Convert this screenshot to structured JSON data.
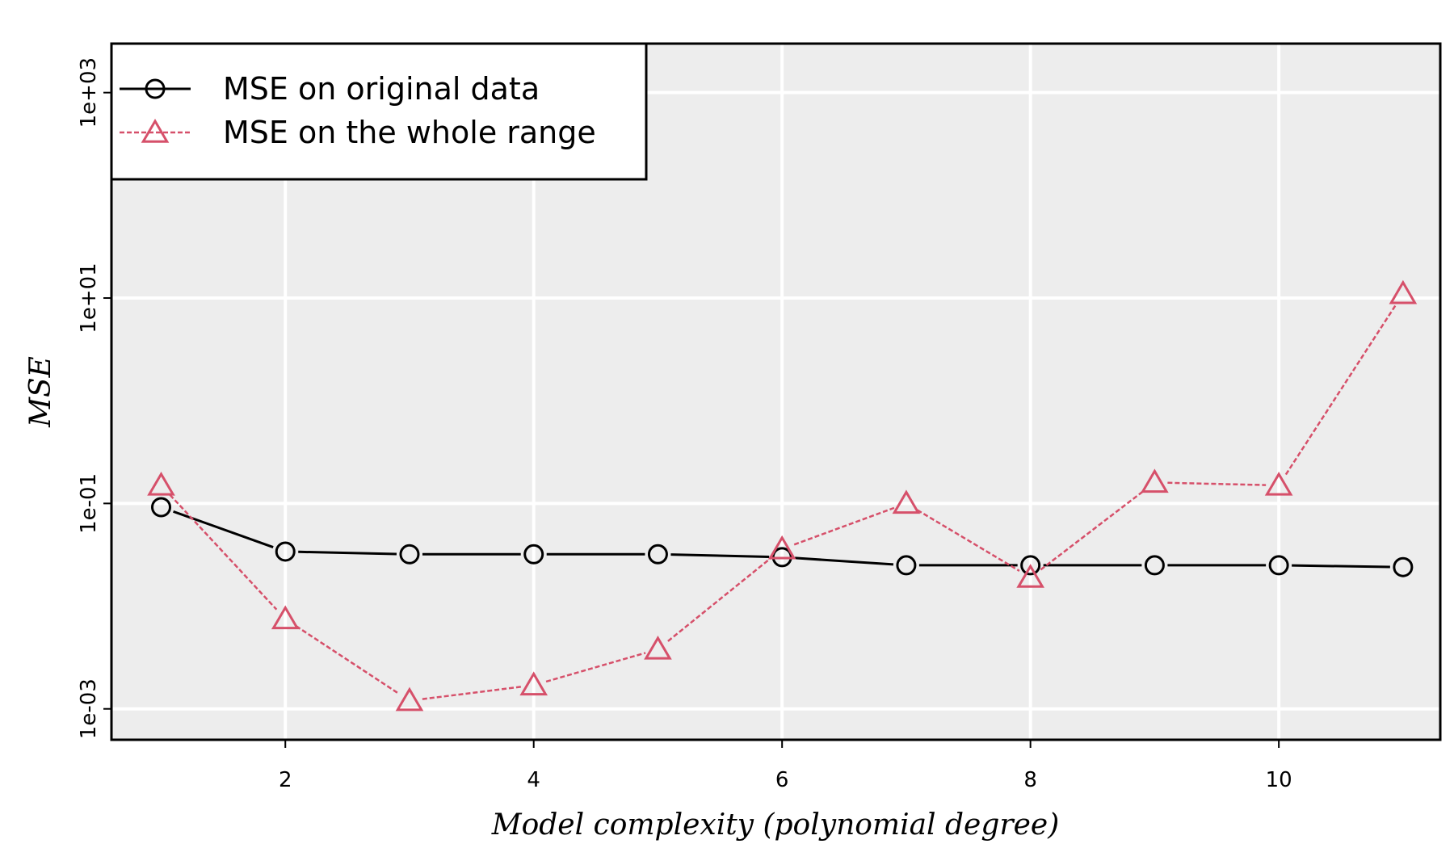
{
  "chart_data": {
    "type": "line",
    "xlabel": "Model complexity (polynomial degree)",
    "ylabel": "MSE",
    "y_scale": "log10",
    "xlim": [
      0.6,
      11.3
    ],
    "ylim": [
      0.0005,
      3000
    ],
    "x_ticks": [
      2,
      4,
      6,
      8,
      10
    ],
    "y_ticks": [
      0.001,
      0.1,
      10,
      1000
    ],
    "y_tick_labels": [
      "1e-03",
      "1e-01",
      "1e+01",
      "1e+03"
    ],
    "grid": true,
    "background": "#ededed",
    "legend_position": "top-left",
    "x": [
      1,
      2,
      3,
      4,
      5,
      6,
      7,
      8,
      9,
      10,
      11
    ],
    "series": [
      {
        "name": "MSE on original data",
        "values": [
          0.092,
          0.034,
          0.032,
          0.032,
          0.032,
          0.03,
          0.025,
          0.025,
          0.025,
          0.025,
          0.024
        ],
        "color": "#000000",
        "marker": "circle",
        "line": "solid"
      },
      {
        "name": "MSE on the whole range",
        "values": [
          0.15,
          0.0075,
          0.0012,
          0.0017,
          0.0038,
          0.036,
          0.1,
          0.019,
          0.16,
          0.15,
          11
        ],
        "color": "#d6506a",
        "marker": "triangle",
        "line": "dashed"
      }
    ]
  }
}
